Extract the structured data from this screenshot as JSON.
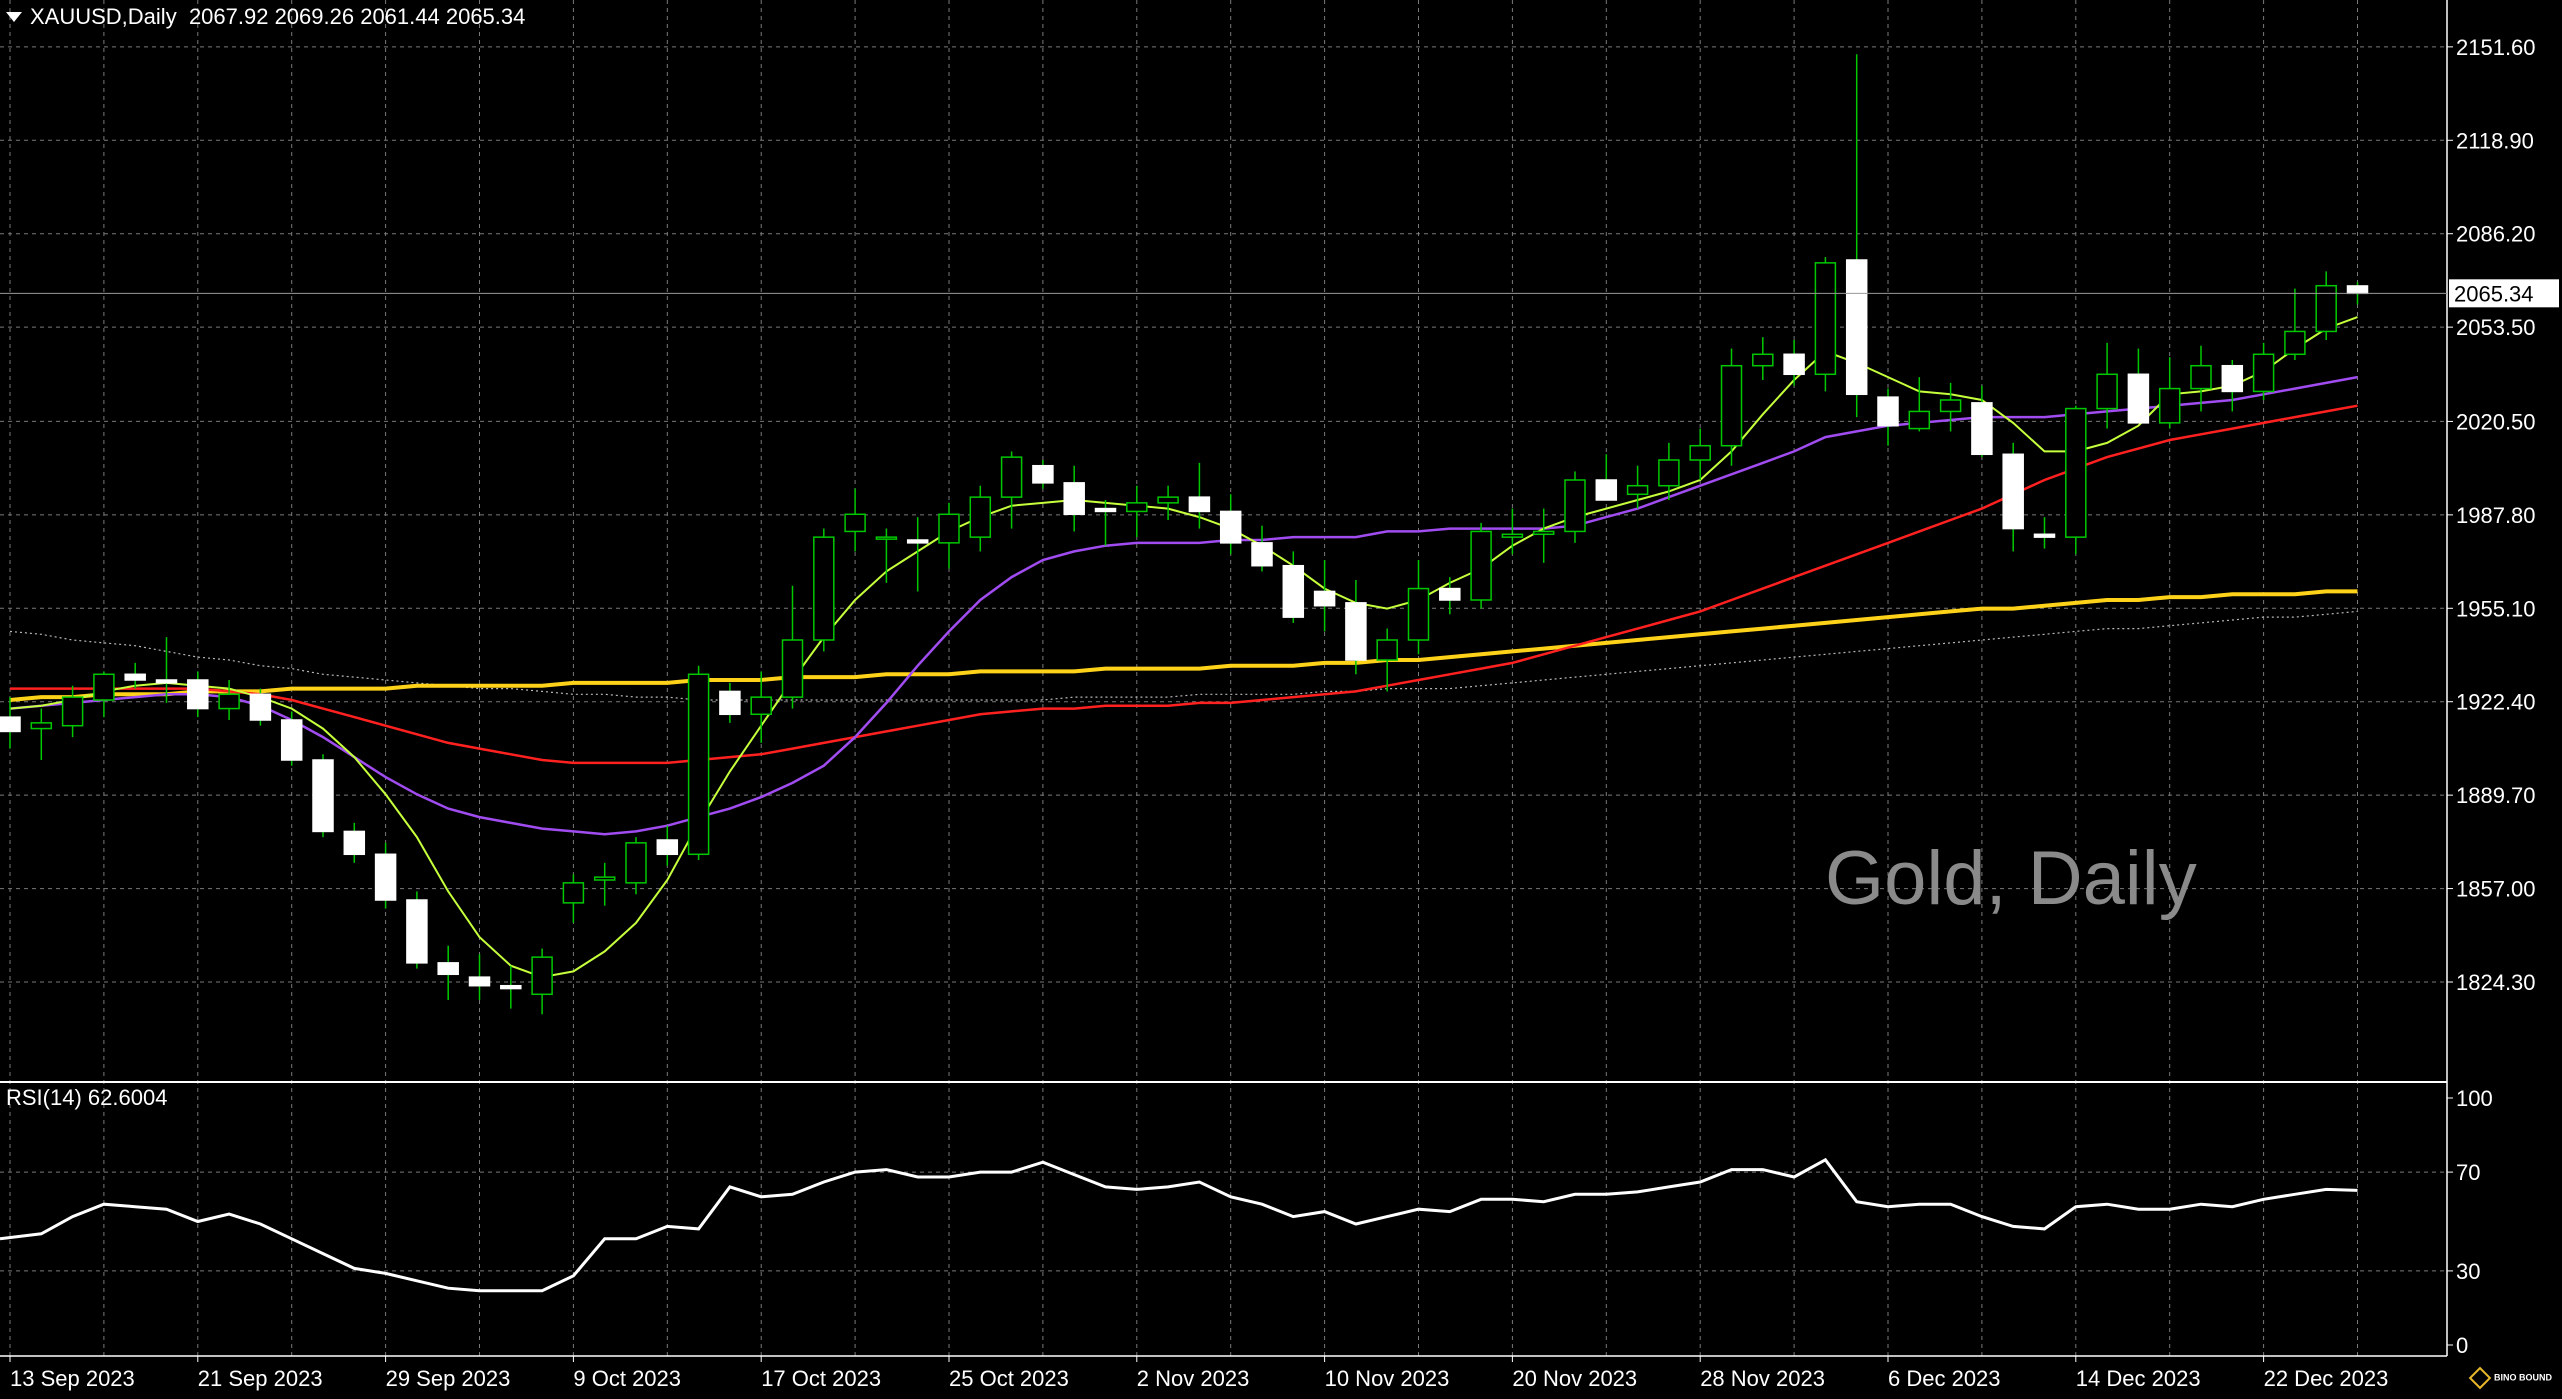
{
  "header": {
    "symbol_label": "XAUUSD,Daily",
    "ohlc_text": "2067.92 2069.26 2061.44 2065.34"
  },
  "watermark": "Gold, Daily",
  "rsi_label": "RSI(14) 62.6004",
  "logo_text": "BINO BOUND",
  "last_price_label": "2065.34",
  "colors": {
    "background": "#000000",
    "grid": "#7a7a7a",
    "bull_body": "#000000",
    "bull_edge": "#00c800",
    "bear_body": "#ffffff",
    "ma_fast": "#c6ff3c",
    "ma_mid": "#a04cf0",
    "ma_slow": "#ff2020",
    "ma_long": "#ffd21a",
    "ma_longest": "#b8b8b8",
    "rsi_line": "#ffffff"
  },
  "chart_data": [
    {
      "type": "candlestick",
      "title": "Gold, Daily",
      "symbol": "XAUUSD",
      "timeframe": "Daily",
      "ylim": [
        1790,
        2168
      ],
      "y_ticks": [
        2151.6,
        2118.9,
        2086.2,
        2053.5,
        2020.5,
        1987.8,
        1955.1,
        1922.4,
        1889.7,
        1857.0,
        1824.3
      ],
      "y_tick_labels": [
        "2151.60",
        "2118.90",
        "2086.20",
        "2053.50",
        "2020.50",
        "1987.80",
        "1955.10",
        "1922.40",
        "1889.70",
        "1857.00",
        "1824.30"
      ],
      "x_tick_labels": [
        {
          "index": 0,
          "label": "13 Sep 2023"
        },
        {
          "index": 6,
          "label": "21 Sep 2023"
        },
        {
          "index": 12,
          "label": "29 Sep 2023"
        },
        {
          "index": 18,
          "label": "9 Oct 2023"
        },
        {
          "index": 24,
          "label": "17 Oct 2023"
        },
        {
          "index": 30,
          "label": "25 Oct 2023"
        },
        {
          "index": 36,
          "label": "2 Nov 2023"
        },
        {
          "index": 42,
          "label": "10 Nov 2023"
        },
        {
          "index": 48,
          "label": "20 Nov 2023"
        },
        {
          "index": 54,
          "label": "28 Nov 2023"
        },
        {
          "index": 60,
          "label": "6 Dec 2023"
        },
        {
          "index": 66,
          "label": "14 Dec 2023"
        },
        {
          "index": 72,
          "label": "22 Dec 2023"
        }
      ],
      "grid": true,
      "last_price": 2065.34,
      "candles": [
        {
          "o": 1917,
          "h": 1924,
          "l": 1906,
          "c": 1912
        },
        {
          "o": 1913,
          "h": 1920,
          "l": 1902,
          "c": 1915
        },
        {
          "o": 1914,
          "h": 1928,
          "l": 1910,
          "c": 1924
        },
        {
          "o": 1923,
          "h": 1933,
          "l": 1917,
          "c": 1932
        },
        {
          "o": 1932,
          "h": 1936,
          "l": 1927,
          "c": 1930
        },
        {
          "o": 1930,
          "h": 1945,
          "l": 1922,
          "c": 1929
        },
        {
          "o": 1930,
          "h": 1933,
          "l": 1917,
          "c": 1920
        },
        {
          "o": 1920,
          "h": 1930,
          "l": 1916,
          "c": 1925
        },
        {
          "o": 1925,
          "h": 1927,
          "l": 1914,
          "c": 1916
        },
        {
          "o": 1916,
          "h": 1919,
          "l": 1900,
          "c": 1902
        },
        {
          "o": 1902,
          "h": 1904,
          "l": 1875,
          "c": 1877
        },
        {
          "o": 1877,
          "h": 1880,
          "l": 1866,
          "c": 1869
        },
        {
          "o": 1869,
          "h": 1873,
          "l": 1850,
          "c": 1853
        },
        {
          "o": 1853,
          "h": 1856,
          "l": 1829,
          "c": 1831
        },
        {
          "o": 1831,
          "h": 1837,
          "l": 1818,
          "c": 1827
        },
        {
          "o": 1826,
          "h": 1834,
          "l": 1818,
          "c": 1823
        },
        {
          "o": 1823,
          "h": 1830,
          "l": 1815,
          "c": 1822
        },
        {
          "o": 1820,
          "h": 1836,
          "l": 1813,
          "c": 1833
        },
        {
          "o": 1852,
          "h": 1862,
          "l": 1845,
          "c": 1859
        },
        {
          "o": 1860,
          "h": 1866,
          "l": 1851,
          "c": 1861
        },
        {
          "o": 1859,
          "h": 1875,
          "l": 1855,
          "c": 1873
        },
        {
          "o": 1874,
          "h": 1879,
          "l": 1865,
          "c": 1869
        },
        {
          "o": 1869,
          "h": 1935,
          "l": 1867,
          "c": 1932
        },
        {
          "o": 1926,
          "h": 1929,
          "l": 1915,
          "c": 1918
        },
        {
          "o": 1918,
          "h": 1933,
          "l": 1908,
          "c": 1924
        },
        {
          "o": 1924,
          "h": 1963,
          "l": 1920,
          "c": 1944
        },
        {
          "o": 1944,
          "h": 1983,
          "l": 1940,
          "c": 1980
        },
        {
          "o": 1982,
          "h": 1997,
          "l": 1975,
          "c": 1988
        },
        {
          "o": 1980,
          "h": 1983,
          "l": 1964,
          "c": 1980
        },
        {
          "o": 1979,
          "h": 1987,
          "l": 1961,
          "c": 1978
        },
        {
          "o": 1978,
          "h": 1992,
          "l": 1969,
          "c": 1988
        },
        {
          "o": 1980,
          "h": 1998,
          "l": 1975,
          "c": 1994
        },
        {
          "o": 1994,
          "h": 2010,
          "l": 1983,
          "c": 2008
        },
        {
          "o": 2005,
          "h": 2007,
          "l": 1997,
          "c": 1999
        },
        {
          "o": 1999,
          "h": 2005,
          "l": 1982,
          "c": 1988
        },
        {
          "o": 1990,
          "h": 1993,
          "l": 1977,
          "c": 1989
        },
        {
          "o": 1989,
          "h": 1998,
          "l": 1980,
          "c": 1992
        },
        {
          "o": 1992,
          "h": 1998,
          "l": 1986,
          "c": 1994
        },
        {
          "o": 1994,
          "h": 2006,
          "l": 1983,
          "c": 1989
        },
        {
          "o": 1989,
          "h": 1995,
          "l": 1974,
          "c": 1978
        },
        {
          "o": 1978,
          "h": 1984,
          "l": 1968,
          "c": 1970
        },
        {
          "o": 1970,
          "h": 1975,
          "l": 1950,
          "c": 1952
        },
        {
          "o": 1961,
          "h": 1972,
          "l": 1947,
          "c": 1956
        },
        {
          "o": 1957,
          "h": 1965,
          "l": 1932,
          "c": 1937
        },
        {
          "o": 1937,
          "h": 1948,
          "l": 1926,
          "c": 1944
        },
        {
          "o": 1944,
          "h": 1972,
          "l": 1939,
          "c": 1962
        },
        {
          "o": 1962,
          "h": 1966,
          "l": 1953,
          "c": 1958
        },
        {
          "o": 1958,
          "h": 1985,
          "l": 1955,
          "c": 1982
        },
        {
          "o": 1980,
          "h": 1990,
          "l": 1974,
          "c": 1981
        },
        {
          "o": 1981,
          "h": 1990,
          "l": 1971,
          "c": 1982
        },
        {
          "o": 1982,
          "h": 2003,
          "l": 1978,
          "c": 2000
        },
        {
          "o": 2000,
          "h": 2009,
          "l": 1995,
          "c": 1993
        },
        {
          "o": 1995,
          "h": 2005,
          "l": 1990,
          "c": 1998
        },
        {
          "o": 1998,
          "h": 2013,
          "l": 1993,
          "c": 2007
        },
        {
          "o": 2007,
          "h": 2018,
          "l": 2000,
          "c": 2012
        },
        {
          "o": 2012,
          "h": 2046,
          "l": 2005,
          "c": 2040
        },
        {
          "o": 2040,
          "h": 2050,
          "l": 2035,
          "c": 2044
        },
        {
          "o": 2044,
          "h": 2049,
          "l": 2033,
          "c": 2037
        },
        {
          "o": 2037,
          "h": 2078,
          "l": 2031,
          "c": 2076
        },
        {
          "o": 2077,
          "h": 2149,
          "l": 2022,
          "c": 2030
        },
        {
          "o": 2029,
          "h": 2032,
          "l": 2012,
          "c": 2019
        },
        {
          "o": 2018,
          "h": 2036,
          "l": 2017,
          "c": 2024
        },
        {
          "o": 2024,
          "h": 2034,
          "l": 2017,
          "c": 2028
        },
        {
          "o": 2027,
          "h": 2033,
          "l": 2008,
          "c": 2009
        },
        {
          "o": 2009,
          "h": 2013,
          "l": 1975,
          "c": 1983
        },
        {
          "o": 1981,
          "h": 1987,
          "l": 1976,
          "c": 1980
        },
        {
          "o": 1980,
          "h": 2026,
          "l": 1974,
          "c": 2025
        },
        {
          "o": 2025,
          "h": 2048,
          "l": 2018,
          "c": 2037
        },
        {
          "o": 2037,
          "h": 2046,
          "l": 2020,
          "c": 2020
        },
        {
          "o": 2020,
          "h": 2043,
          "l": 2018,
          "c": 2032
        },
        {
          "o": 2032,
          "h": 2047,
          "l": 2024,
          "c": 2040
        },
        {
          "o": 2040,
          "h": 2042,
          "l": 2024,
          "c": 2031
        },
        {
          "o": 2031,
          "h": 2048,
          "l": 2028,
          "c": 2044
        },
        {
          "o": 2044,
          "h": 2067,
          "l": 2042,
          "c": 2052
        },
        {
          "o": 2052,
          "h": 2073,
          "l": 2049,
          "c": 2068
        },
        {
          "o": 2067.92,
          "h": 2069.26,
          "l": 2061.44,
          "c": 2065.34
        }
      ],
      "series": [
        {
          "kind": "ma_fast",
          "values": [
            1920,
            1921,
            1923,
            1926,
            1928,
            1929,
            1928,
            1927,
            1924,
            1920,
            1913,
            1903,
            1890,
            1875,
            1856,
            1840,
            1830,
            1826,
            1828,
            1835,
            1845,
            1860,
            1880,
            1898,
            1914,
            1930,
            1945,
            1958,
            1968,
            1975,
            1982,
            1987,
            1991,
            1992,
            1993,
            1992,
            1991,
            1990,
            1987,
            1983,
            1977,
            1970,
            1962,
            1957,
            1955,
            1958,
            1964,
            1969,
            1977,
            1983,
            1987,
            1990,
            1993,
            1996,
            2000,
            2010,
            2023,
            2035,
            2045,
            2041,
            2036,
            2031,
            2030,
            2028,
            2020,
            2010,
            2010,
            2013,
            2019,
            2030,
            2031,
            2033,
            2038,
            2046,
            2053,
            2057
          ]
        },
        {
          "kind": "ma_mid",
          "values": [
            1920,
            1921,
            1922,
            1923,
            1924,
            1925,
            1925,
            1924,
            1921,
            1916,
            1910,
            1903,
            1896,
            1890,
            1885,
            1882,
            1880,
            1878,
            1877,
            1876,
            1877,
            1879,
            1882,
            1885,
            1889,
            1894,
            1900,
            1910,
            1922,
            1935,
            1947,
            1958,
            1966,
            1972,
            1975,
            1977,
            1978,
            1978,
            1978,
            1979,
            1979,
            1980,
            1980,
            1980,
            1982,
            1982,
            1983,
            1983,
            1983,
            1983,
            1984,
            1987,
            1990,
            1994,
            1998,
            2002,
            2006,
            2010,
            2015,
            2017,
            2019,
            2020,
            2021,
            2022,
            2022,
            2022,
            2023,
            2024,
            2025,
            2026,
            2027,
            2028,
            2030,
            2032,
            2034,
            2036
          ]
        },
        {
          "kind": "ma_slow",
          "values": [
            1927,
            1927,
            1927,
            1927,
            1927,
            1927,
            1927,
            1926,
            1925,
            1923,
            1920,
            1917,
            1914,
            1911,
            1908,
            1906,
            1904,
            1902,
            1901,
            1901,
            1901,
            1901,
            1902,
            1903,
            1904,
            1906,
            1908,
            1910,
            1912,
            1914,
            1916,
            1918,
            1919,
            1920,
            1920,
            1921,
            1921,
            1921,
            1922,
            1922,
            1923,
            1924,
            1925,
            1926,
            1928,
            1930,
            1932,
            1934,
            1936,
            1939,
            1942,
            1945,
            1948,
            1951,
            1954,
            1958,
            1962,
            1966,
            1970,
            1974,
            1978,
            1982,
            1986,
            1990,
            1995,
            2000,
            2004,
            2008,
            2011,
            2014,
            2016,
            2018,
            2020,
            2022,
            2024,
            2026
          ]
        },
        {
          "kind": "ma_long",
          "values": [
            1923,
            1924,
            1924,
            1925,
            1925,
            1925,
            1926,
            1926,
            1926,
            1927,
            1927,
            1927,
            1927,
            1928,
            1928,
            1928,
            1928,
            1928,
            1929,
            1929,
            1929,
            1929,
            1930,
            1930,
            1930,
            1931,
            1931,
            1931,
            1932,
            1932,
            1932,
            1933,
            1933,
            1933,
            1933,
            1934,
            1934,
            1934,
            1934,
            1935,
            1935,
            1935,
            1936,
            1936,
            1937,
            1937,
            1938,
            1939,
            1940,
            1941,
            1942,
            1943,
            1944,
            1945,
            1946,
            1947,
            1948,
            1949,
            1950,
            1951,
            1952,
            1953,
            1954,
            1955,
            1955,
            1956,
            1957,
            1958,
            1958,
            1959,
            1959,
            1960,
            1960,
            1960,
            1961,
            1961
          ]
        },
        {
          "kind": "ma_longest",
          "values": [
            1947,
            1946,
            1944,
            1943,
            1942,
            1940,
            1938,
            1937,
            1935,
            1934,
            1932,
            1931,
            1930,
            1929,
            1928,
            1927,
            1927,
            1926,
            1925,
            1925,
            1924,
            1924,
            1923,
            1923,
            1923,
            1923,
            1923,
            1923,
            1923,
            1923,
            1923,
            1923,
            1923,
            1923,
            1924,
            1924,
            1924,
            1924,
            1925,
            1925,
            1925,
            1925,
            1926,
            1926,
            1927,
            1927,
            1927,
            1928,
            1929,
            1930,
            1931,
            1932,
            1933,
            1934,
            1935,
            1936,
            1937,
            1938,
            1939,
            1940,
            1941,
            1942,
            1943,
            1944,
            1945,
            1946,
            1947,
            1948,
            1948,
            1949,
            1950,
            1951,
            1952,
            1952,
            1953,
            1954
          ]
        }
      ]
    },
    {
      "type": "line",
      "title": "RSI(14) 62.6004",
      "ylim": [
        0,
        100
      ],
      "y_ticks": [
        0,
        30,
        70,
        100
      ],
      "y_tick_labels": [
        "0",
        "30",
        "70",
        "100"
      ],
      "last_value": 62.6004,
      "values": [
        43,
        45,
        52,
        57,
        56,
        55,
        50,
        53,
        49,
        43,
        37,
        31,
        29,
        26,
        23,
        22,
        22,
        22,
        28,
        43,
        43,
        48,
        47,
        64,
        60,
        61,
        66,
        70,
        71,
        68,
        68,
        70,
        70,
        74,
        69,
        64,
        63,
        64,
        66,
        60,
        57,
        52,
        54,
        49,
        52,
        55,
        54,
        59,
        59,
        58,
        61,
        61,
        62,
        64,
        66,
        71,
        71,
        68,
        75,
        58,
        56,
        57,
        57,
        52,
        48,
        47,
        56,
        57,
        55,
        55,
        57,
        56,
        59,
        61,
        63,
        62.6
      ]
    }
  ]
}
